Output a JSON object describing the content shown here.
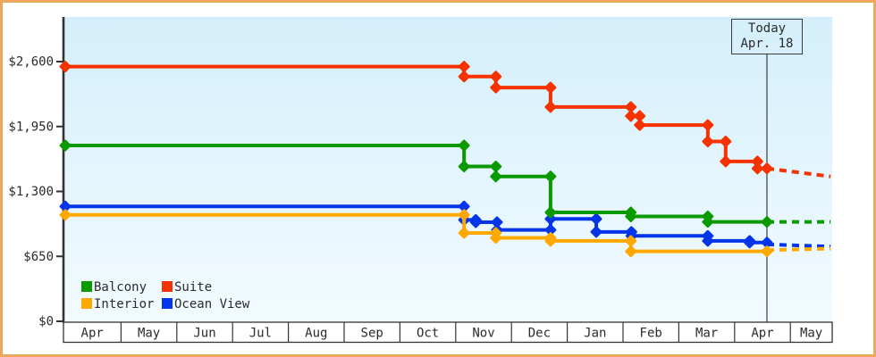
{
  "frame": {
    "border_color": "#eca75d"
  },
  "text_color": "#2b2b2b",
  "chart_data": {
    "type": "line",
    "line_style": "stepped-price-history",
    "x_labels": [
      "Apr",
      "May",
      "Jun",
      "Jul",
      "Aug",
      "Sep",
      "Oct",
      "Nov",
      "Dec",
      "Jan",
      "Feb",
      "Mar",
      "Apr",
      "May"
    ],
    "y_ticks": [
      {
        "label": "$2,600",
        "value": 2600
      },
      {
        "label": "$1,950",
        "value": 1950
      },
      {
        "label": "$1,300",
        "value": 1300
      },
      {
        "label": "$650",
        "value": 650
      },
      {
        "label": "$0",
        "value": 0
      }
    ],
    "ylim": [
      0,
      3050
    ],
    "x_end_m": 13.72,
    "grid": "off",
    "legend_position": "bottom-left",
    "plot_background": {
      "top": "#d4effb",
      "bottom": "#f2fbff"
    },
    "today": {
      "line1": "Today",
      "line2": "Apr. 18",
      "m": 12.58
    },
    "series": [
      {
        "name": "Balcony",
        "color": "#0a9a00",
        "start_value": 1760,
        "steps": [
          [
            7.15,
            1550
          ],
          [
            7.72,
            1450
          ],
          [
            8.7,
            1090
          ],
          [
            10.14,
            1050
          ],
          [
            11.52,
            995
          ]
        ],
        "value_today": 995,
        "projection": [
          [
            12.58,
            995
          ],
          [
            13.72,
            995
          ]
        ]
      },
      {
        "name": "Suite",
        "color": "#f53200",
        "start_value": 2550,
        "steps": [
          [
            7.15,
            2450
          ],
          [
            7.72,
            2340
          ],
          [
            8.7,
            2145
          ],
          [
            10.14,
            2055
          ],
          [
            10.3,
            1965
          ],
          [
            11.52,
            1800
          ],
          [
            11.84,
            1600
          ],
          [
            12.41,
            1530
          ]
        ],
        "value_today": 1530,
        "projection": [
          [
            12.58,
            1530
          ],
          [
            13.72,
            1450
          ]
        ]
      },
      {
        "name": "Interior",
        "color": "#ffa800",
        "start_value": 1065,
        "steps": [
          [
            7.15,
            885
          ],
          [
            7.72,
            835
          ],
          [
            8.7,
            805
          ],
          [
            10.14,
            700
          ]
        ],
        "value_today": 700,
        "projection": [
          [
            12.58,
            712
          ],
          [
            13.72,
            728
          ]
        ]
      },
      {
        "name": "Ocean View",
        "color": "#0535e8",
        "start_value": 1150,
        "steps": [
          [
            7.15,
            1015
          ],
          [
            7.36,
            992
          ],
          [
            7.74,
            915
          ],
          [
            8.7,
            1025
          ],
          [
            9.52,
            895
          ],
          [
            10.15,
            855
          ],
          [
            11.52,
            805
          ],
          [
            12.27,
            788
          ]
        ],
        "value_today": 788,
        "projection": [
          [
            12.58,
            770
          ],
          [
            13.72,
            748
          ]
        ]
      }
    ]
  }
}
